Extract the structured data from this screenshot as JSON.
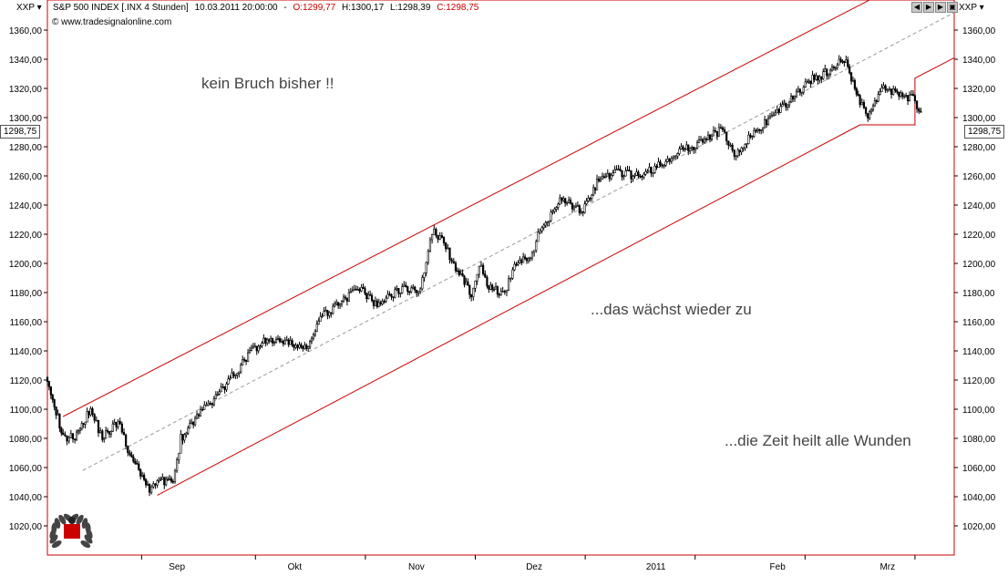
{
  "header": {
    "symbol_left": "XXP",
    "symbol_right": "XXP",
    "instrument": "S&P 500 INDEX [.INX  4 Stunden]",
    "datetime": "10.03.2011 20:00:00",
    "open": "O:1299,77",
    "high": "H:1300,17",
    "low": "L:1298,39",
    "close": "C:1298,75",
    "source": "© www.tradesignalonline.com"
  },
  "annotations": {
    "no_break": "kein Bruch bisher !!",
    "grows_back": "...das wächst wieder zu",
    "time_heals": "...die Zeit heilt alle Wunden"
  },
  "price_tag": "1298,75",
  "colors": {
    "channel": "#cc0000",
    "candles": "#000000",
    "midline": "#999999",
    "frame": "#cc0000"
  },
  "chart_data": {
    "type": "line",
    "title": "S&P 500 INDEX [.INX  4 Stunden]",
    "yticks": [
      1020,
      1040,
      1060,
      1080,
      1100,
      1120,
      1140,
      1160,
      1180,
      1200,
      1220,
      1240,
      1260,
      1280,
      1300,
      1320,
      1340,
      1360
    ],
    "ytick_labels": [
      "1020,00",
      "1040,00",
      "1060,00",
      "1080,00",
      "1100,00",
      "1120,00",
      "1140,00",
      "1160,00",
      "1180,00",
      "1200,00",
      "1220,00",
      "1240,00",
      "1260,00",
      "1280,00",
      "1300,00",
      "1320,00",
      "1340,00",
      "1360,00"
    ],
    "ylim": [
      1000,
      1380
    ],
    "xlim": [
      "2010-07-30",
      "2011-03-18"
    ],
    "x_tick_labels": [
      "Sep",
      "Okt",
      "Nov",
      "Dez",
      "2011",
      "Feb",
      "Mrz"
    ],
    "x_tick_dates": [
      "2010-09-01",
      "2010-10-01",
      "2010-11-01",
      "2010-12-01",
      "2011-01-01",
      "2011-02-01",
      "2011-03-01"
    ],
    "x_divider_dates": [
      "2010-08-23",
      "2010-09-21",
      "2010-10-19",
      "2010-11-16",
      "2010-12-14",
      "2011-01-11",
      "2011-02-08",
      "2011-03-08"
    ],
    "grid": false,
    "series": [
      {
        "type": "line",
        "x": [
          "2010-07-30",
          "2010-08-03",
          "2010-08-06",
          "2010-08-10",
          "2010-08-13",
          "2010-08-17",
          "2010-08-20",
          "2010-08-25",
          "2010-08-27",
          "2010-08-31",
          "2010-09-02",
          "2010-09-07",
          "2010-09-10",
          "2010-09-15",
          "2010-09-20",
          "2010-09-24",
          "2010-09-29",
          "2010-10-04",
          "2010-10-08",
          "2010-10-13",
          "2010-10-18",
          "2010-10-22",
          "2010-10-27",
          "2010-11-02",
          "2010-11-05",
          "2010-11-08",
          "2010-11-11",
          "2010-11-15",
          "2010-11-17",
          "2010-11-19",
          "2010-11-23",
          "2010-11-26",
          "2010-11-30",
          "2010-12-03",
          "2010-12-08",
          "2010-12-13",
          "2010-12-17",
          "2010-12-22",
          "2010-12-28",
          "2011-01-04",
          "2011-01-07",
          "2011-01-12",
          "2011-01-18",
          "2011-01-21",
          "2011-01-26",
          "2011-01-31",
          "2011-02-04",
          "2011-02-09",
          "2011-02-14",
          "2011-02-18",
          "2011-02-22",
          "2011-02-24",
          "2011-02-28",
          "2011-03-03",
          "2011-03-08",
          "2011-03-10"
        ],
        "values": [
          1122,
          1080,
          1082,
          1100,
          1080,
          1092,
          1068,
          1045,
          1052,
          1050,
          1080,
          1098,
          1105,
          1122,
          1140,
          1148,
          1145,
          1142,
          1163,
          1175,
          1182,
          1170,
          1182,
          1183,
          1222,
          1215,
          1195,
          1180,
          1200,
          1185,
          1178,
          1198,
          1205,
          1225,
          1245,
          1235,
          1255,
          1262,
          1260,
          1270,
          1278,
          1282,
          1292,
          1275,
          1290,
          1300,
          1312,
          1325,
          1332,
          1340,
          1310,
          1302,
          1320,
          1318,
          1312,
          1298
        ]
      }
    ],
    "overlays": {
      "channel_upper": {
        "x": [
          "2010-08-03",
          "2011-03-01"
        ],
        "values": [
          1095,
          1387
        ]
      },
      "channel_lower": {
        "x": [
          "2010-08-27",
          "2011-02-22"
        ],
        "values": [
          1041,
          1295
        ]
      },
      "midline": {
        "x": [
          "2010-08-08",
          "2011-03-18"
        ],
        "values": [
          1058,
          1372
        ]
      },
      "box": {
        "x": [
          "2011-02-22",
          "2011-03-08",
          "2011-03-08",
          "2011-03-18"
        ],
        "values": [
          1295,
          1295,
          1327,
          1341
        ]
      }
    }
  }
}
